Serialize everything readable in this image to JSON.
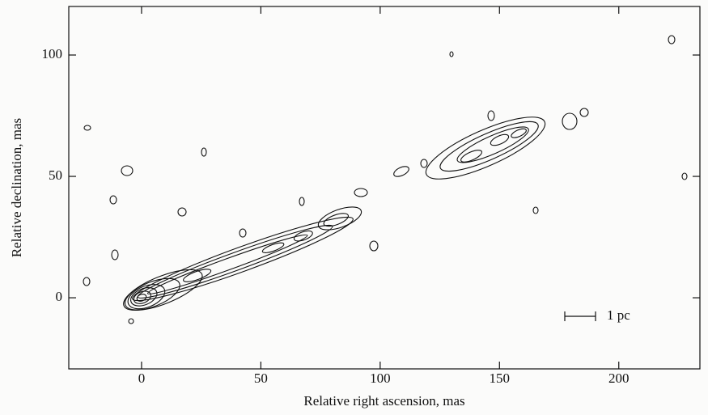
{
  "chart_data": {
    "type": "contour",
    "x_label": "Relative right ascension, mas",
    "y_label": "Relative declination, mas",
    "xlim": [
      -30.5,
      234
    ],
    "ylim": [
      -29.3,
      120
    ],
    "xticks": [
      0,
      50,
      100,
      150,
      200
    ],
    "yticks": [
      0,
      50,
      100
    ],
    "annotation": "1 pc"
  }
}
